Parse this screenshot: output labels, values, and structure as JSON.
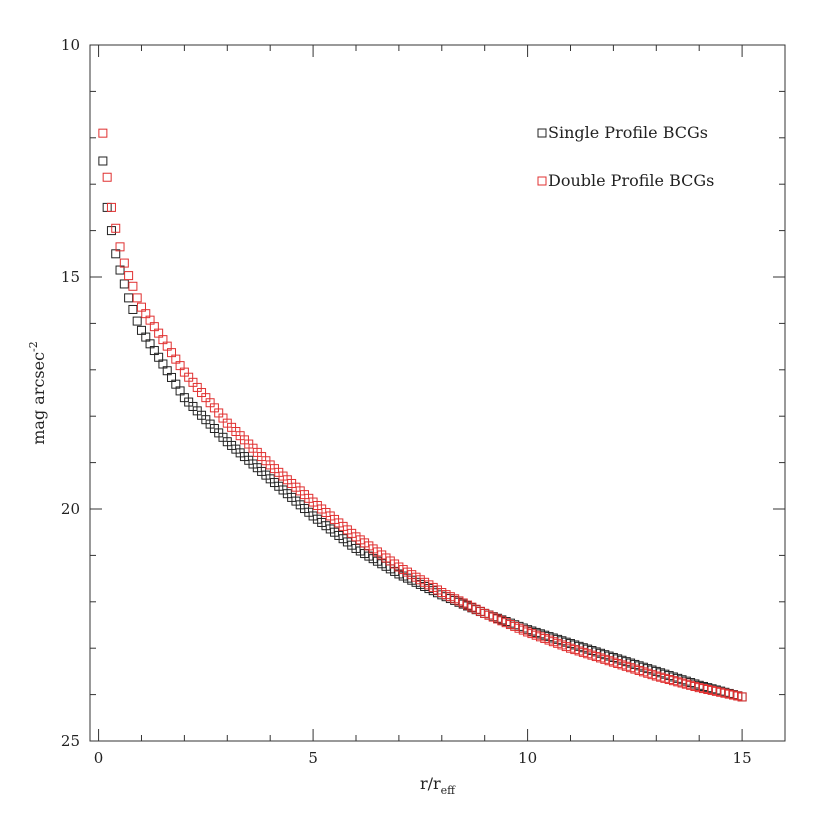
{
  "chart_data": {
    "type": "scatter",
    "xlabel_main": "r/r",
    "xlabel_sub": "eff",
    "ylabel_main": "mag arcsec",
    "ylabel_sup": "-2",
    "xlim": [
      -0.2,
      16
    ],
    "ylim": [
      10,
      25
    ],
    "y_inverted": true,
    "x_ticks": [
      0,
      5,
      10,
      15
    ],
    "x_tick_labels": [
      "0",
      "5",
      "10",
      "15"
    ],
    "y_ticks": [
      10,
      15,
      20,
      25
    ],
    "y_tick_labels": [
      "10",
      "15",
      "20",
      "25"
    ],
    "legend_position": "top-right",
    "marker": "open-square",
    "x_spacing": 0.1,
    "series": [
      {
        "name": "Single Profile BCGs",
        "color": "#222222",
        "x": [
          0.1,
          0.2,
          0.3,
          0.4,
          0.5,
          0.6,
          0.7,
          0.8,
          0.9,
          1.0,
          2.0,
          3.0,
          4.0,
          5.0,
          6.0,
          7.0,
          8.0,
          9.0,
          10.0,
          11.0,
          12.0,
          13.0,
          14.0,
          15.0
        ],
        "y": [
          12.5,
          13.5,
          14.0,
          14.5,
          14.85,
          15.15,
          15.45,
          15.7,
          15.95,
          16.15,
          17.6,
          18.55,
          19.35,
          20.15,
          20.85,
          21.4,
          21.85,
          22.25,
          22.6,
          22.9,
          23.2,
          23.5,
          23.8,
          24.05
        ]
      },
      {
        "name": "Double Profile BCGs",
        "color": "#e03030",
        "x": [
          0.1,
          0.2,
          0.3,
          0.4,
          0.5,
          0.6,
          0.7,
          0.8,
          0.9,
          1.0,
          2.0,
          3.0,
          4.0,
          5.0,
          6.0,
          7.0,
          8.0,
          9.0,
          10.0,
          11.0,
          12.0,
          13.0,
          14.0,
          15.0
        ],
        "y": [
          11.9,
          12.85,
          13.5,
          13.95,
          14.35,
          14.7,
          14.97,
          15.2,
          15.45,
          15.65,
          17.05,
          18.15,
          19.05,
          19.85,
          20.6,
          21.25,
          21.8,
          22.25,
          22.65,
          23.0,
          23.3,
          23.6,
          23.85,
          24.05
        ]
      }
    ]
  }
}
